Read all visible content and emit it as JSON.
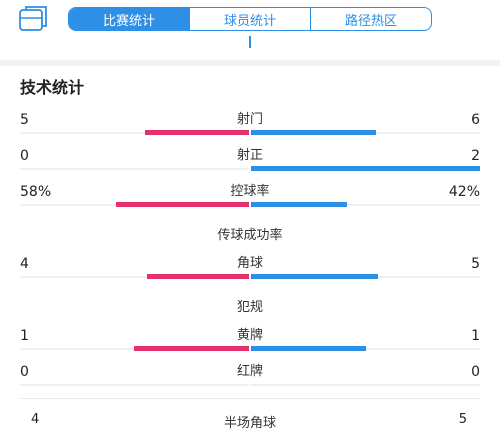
{
  "tabs": [
    {
      "label": "比赛统计",
      "active": true
    },
    {
      "label": "球员统计",
      "active": false
    },
    {
      "label": "路径热区",
      "active": false
    }
  ],
  "section_title": "技术统计",
  "colors": {
    "home": "#e3336a",
    "away": "#2e8fe6",
    "accent": "#2e8fe6"
  },
  "stats": [
    {
      "label": "射门",
      "left": "5",
      "right": "6",
      "left_value": 5,
      "right_value": 6
    },
    {
      "label": "射正",
      "left": "0",
      "right": "2",
      "left_value": 0,
      "right_value": 2
    },
    {
      "label": "控球率",
      "left": "58%",
      "right": "42%",
      "left_value": 58,
      "right_value": 42
    },
    {
      "label": "传球成功率",
      "left": "",
      "right": "",
      "left_value": null,
      "right_value": null
    },
    {
      "label": "角球",
      "left": "4",
      "right": "5",
      "left_value": 4,
      "right_value": 5
    },
    {
      "label": "犯规",
      "left": "",
      "right": "",
      "left_value": null,
      "right_value": null
    },
    {
      "label": "黄牌",
      "left": "1",
      "right": "1",
      "left_value": 1,
      "right_value": 1
    },
    {
      "label": "红牌",
      "left": "0",
      "right": "0",
      "left_value": 0,
      "right_value": 0
    }
  ],
  "half_corner": {
    "label": "半场角球",
    "left": "4",
    "right": "5"
  }
}
